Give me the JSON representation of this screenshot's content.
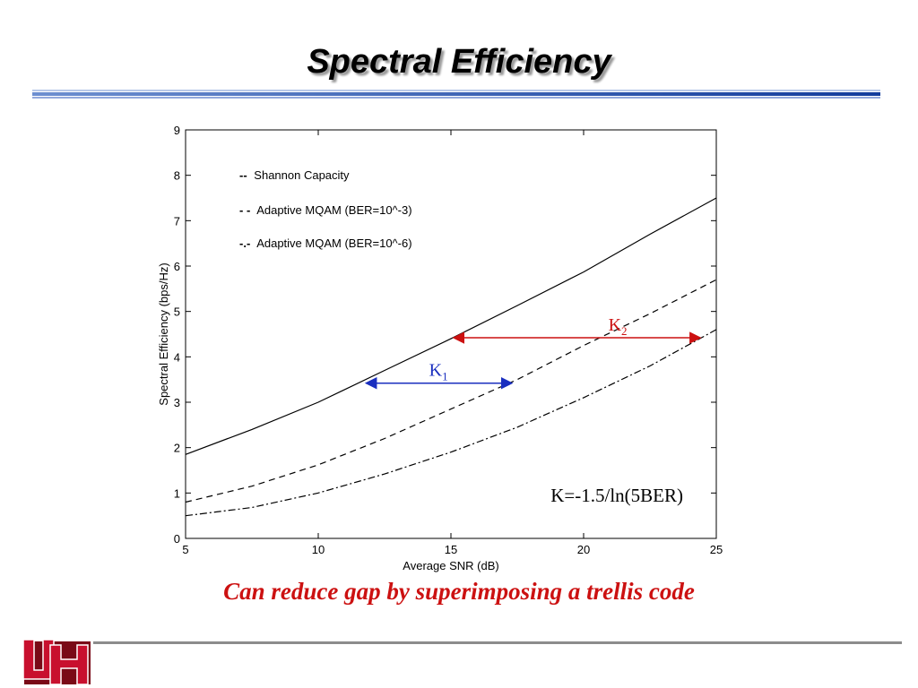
{
  "slide": {
    "title": "Spectral Efficiency",
    "caption": "Can reduce gap by superimposing a trellis code"
  },
  "logo": {
    "name": "university-of-houston-logo",
    "text": "UH",
    "color": "#c8102e"
  },
  "colors": {
    "k1_arrow": "#1a2fbf",
    "k2_arrow": "#cc1111",
    "caption": "#cc1111"
  },
  "chart_data": {
    "type": "line",
    "xlabel": "Average SNR (dB)",
    "ylabel": "Spectral Efficiency (bps/Hz)",
    "xlim": [
      5,
      25
    ],
    "ylim": [
      0,
      9
    ],
    "xticks": [
      5,
      10,
      15,
      20,
      25
    ],
    "yticks": [
      0,
      1,
      2,
      3,
      4,
      5,
      6,
      7,
      8,
      9
    ],
    "grid": false,
    "legend_position": "upper-left",
    "series": [
      {
        "name": "Shannon Capacity",
        "legend_marker": "--",
        "style": "solid",
        "x": [
          5,
          7.5,
          10,
          12.5,
          15,
          17.5,
          20,
          22.5,
          25
        ],
        "y": [
          1.85,
          2.4,
          3.0,
          3.7,
          4.4,
          5.13,
          5.87,
          6.7,
          7.5
        ]
      },
      {
        "name": "Adaptive MQAM (BER=10^-3)",
        "legend_marker": "- -",
        "style": "dashed",
        "x": [
          5,
          7.5,
          10,
          12.5,
          15,
          17.5,
          20,
          22.5,
          25
        ],
        "y": [
          0.8,
          1.15,
          1.62,
          2.2,
          2.85,
          3.5,
          4.25,
          4.95,
          5.7
        ]
      },
      {
        "name": "Adaptive MQAM (BER=10^-6)",
        "legend_marker": "-.-",
        "style": "dashdot",
        "x": [
          5,
          7.5,
          10,
          12.5,
          15,
          17.5,
          20,
          22.5,
          25
        ],
        "y": [
          0.5,
          0.68,
          1.0,
          1.42,
          1.9,
          2.45,
          3.1,
          3.8,
          4.6
        ]
      }
    ],
    "annotations": {
      "k1": {
        "label": "K",
        "sub": "1",
        "x_from": 11.8,
        "x_to": 17.3,
        "y": 3.42
      },
      "k2": {
        "label": "K",
        "sub": "2",
        "x_from": 15.1,
        "x_to": 24.4,
        "y": 4.42
      },
      "formula": "K=-1.5/ln(5BER)"
    }
  }
}
